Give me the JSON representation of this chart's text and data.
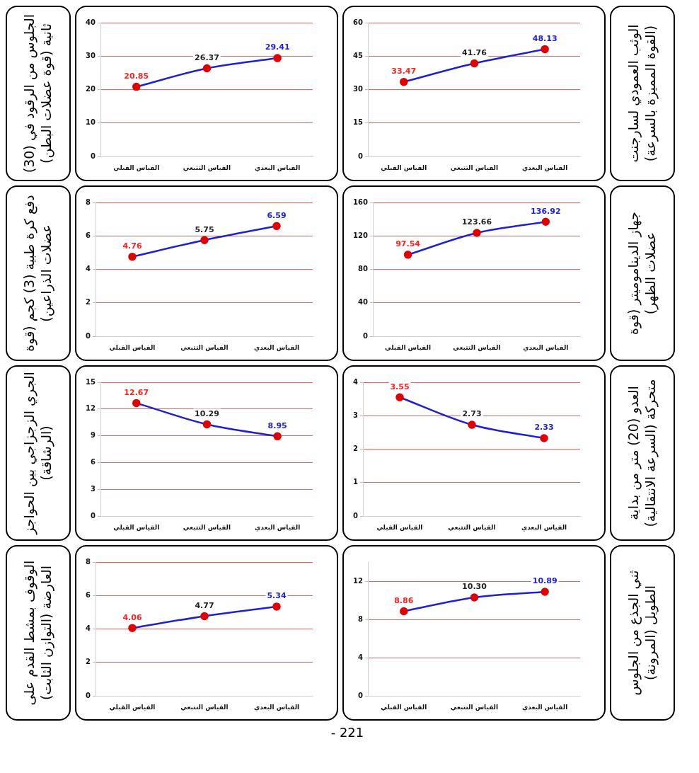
{
  "chart_data": [
    {
      "type": "line",
      "ylabel": "الجلوس من الرقود في (30) ثانية (قوة عضلات البطن)",
      "categories": [
        "القياس القبلي",
        "القياس التتبعي",
        "القياس البعدي"
      ],
      "series": [
        {
          "color": "#1f1fd6",
          "colors": [
            "#e00000",
            "#e00000",
            "#e00000"
          ],
          "values": [
            20.85,
            26.37,
            29.41
          ],
          "value_labels": [
            "20.85",
            "26.37",
            "29.41"
          ]
        }
      ],
      "ylim": [
        0,
        40
      ],
      "yticks": [
        0,
        10,
        20,
        30,
        40
      ],
      "grid": "y",
      "marker": "circle",
      "line_style": "solid",
      "legend": false
    },
    {
      "type": "line",
      "ylabel": "الوثب العمودي لسارجنت (القوة المميزة بالسرعة)",
      "categories": [
        "القياس القبلي",
        "القياس التتبعي",
        "القياس البعدي"
      ],
      "series": [
        {
          "color": "#1f1fd6",
          "colors": [
            "#e00000",
            "#e00000",
            "#e00000"
          ],
          "values": [
            33.47,
            41.76,
            48.13
          ],
          "value_labels": [
            "33.47",
            "41.76",
            "48.13"
          ]
        }
      ],
      "ylim": [
        0,
        60
      ],
      "yticks": [
        0,
        15,
        30,
        45,
        60
      ],
      "grid": "y",
      "marker": "circle",
      "line_style": "solid",
      "legend": false
    },
    {
      "type": "line",
      "ylabel": "دفع كرة طبية (3) كجم (قوة عضلات الذراعين)",
      "categories": [
        "القياس القبلي",
        "القياس التتبعي",
        "القياس البعدي"
      ],
      "series": [
        {
          "color": "#1f1fd6",
          "colors": [
            "#e00000",
            "#e00000",
            "#e00000"
          ],
          "values": [
            4.76,
            5.75,
            6.59
          ],
          "value_labels": [
            "4.76",
            "5.75",
            "6.59"
          ]
        }
      ],
      "ylim": [
        0,
        8
      ],
      "yticks": [
        0,
        2,
        4,
        6,
        8
      ],
      "grid": "y",
      "marker": "circle",
      "line_style": "solid",
      "legend": false
    },
    {
      "type": "line",
      "ylabel": "جهاز الديناموميتر (قوة عضلات الظهر)",
      "categories": [
        "القياس القبلي",
        "القياس التتبعي",
        "القياس البعدي"
      ],
      "series": [
        {
          "color": "#1f1fd6",
          "colors": [
            "#e00000",
            "#e00000",
            "#e00000"
          ],
          "values": [
            97.54,
            123.66,
            136.92
          ],
          "value_labels": [
            "97.54",
            "123.66",
            "136.92"
          ]
        }
      ],
      "ylim": [
        0,
        160
      ],
      "yticks": [
        0,
        40,
        80,
        120,
        160
      ],
      "grid": "y",
      "marker": "circle",
      "line_style": "solid",
      "legend": false
    },
    {
      "type": "line",
      "ylabel": "الجري الزجزاجي بين الحواجز (الرشاقة)",
      "categories": [
        "القياس القبلي",
        "القياس التتبعي",
        "القياس البعدي"
      ],
      "series": [
        {
          "color": "#1f1fd6",
          "colors": [
            "#e00000",
            "#e00000",
            "#e00000"
          ],
          "values": [
            12.67,
            10.29,
            8.95
          ],
          "value_labels": [
            "12.67",
            "10.29",
            "8.95"
          ]
        }
      ],
      "ylim": [
        0,
        15
      ],
      "yticks": [
        0,
        3,
        6,
        9,
        12,
        15
      ],
      "grid": "y",
      "marker": "circle",
      "line_style": "solid",
      "legend": false
    },
    {
      "type": "line",
      "ylabel": "العدو (20) متر من بداية متحركة (السرعة الانتقالية)",
      "categories": [
        "القياس القبلي",
        "القياس التتبعي",
        "القياس البعدي"
      ],
      "series": [
        {
          "color": "#1f1fd6",
          "colors": [
            "#e00000",
            "#e00000",
            "#e00000"
          ],
          "values": [
            3.55,
            2.73,
            2.33
          ],
          "value_labels": [
            "3.55",
            "2.73",
            "2.33"
          ]
        }
      ],
      "ylim": [
        0,
        4
      ],
      "yticks": [
        0,
        1,
        2,
        3,
        4
      ],
      "grid": "y",
      "marker": "circle",
      "line_style": "solid",
      "legend": false
    },
    {
      "type": "line",
      "ylabel": "الوقوف بمشط القدم على العارضة (التوازن الثابت)",
      "categories": [
        "القياس القبلي",
        "القياس التتبعي",
        "القياس البعدي"
      ],
      "series": [
        {
          "color": "#1f1fd6",
          "colors": [
            "#e00000",
            "#e00000",
            "#e00000"
          ],
          "values": [
            4.06,
            4.77,
            5.34
          ],
          "value_labels": [
            "4.06",
            "4.77",
            "5.34"
          ]
        }
      ],
      "ylim": [
        0,
        8
      ],
      "yticks": [
        0,
        2,
        4,
        6,
        8
      ],
      "grid": "y",
      "marker": "circle",
      "line_style": "solid",
      "legend": false,
      "annotations": [
        "- 221"
      ]
    },
    {
      "type": "line",
      "ylabel": "ثني الجذع من الجلوس الطويل (المرونة)",
      "categories": [
        "القياس القبلي",
        "القياس التتبعي",
        "القياس البعدي"
      ],
      "series": [
        {
          "color": "#1f1fd6",
          "colors": [
            "#e00000",
            "#e00000",
            "#e00000"
          ],
          "values": [
            8.86,
            10.3,
            10.89
          ],
          "value_labels": [
            "8.86",
            "10.30",
            "10.89"
          ]
        }
      ],
      "ylim": [
        0,
        14
      ],
      "yticks": [
        0,
        4,
        8,
        12
      ],
      "grid": "y",
      "marker": "circle",
      "line_style": "solid",
      "legend": false
    }
  ]
}
